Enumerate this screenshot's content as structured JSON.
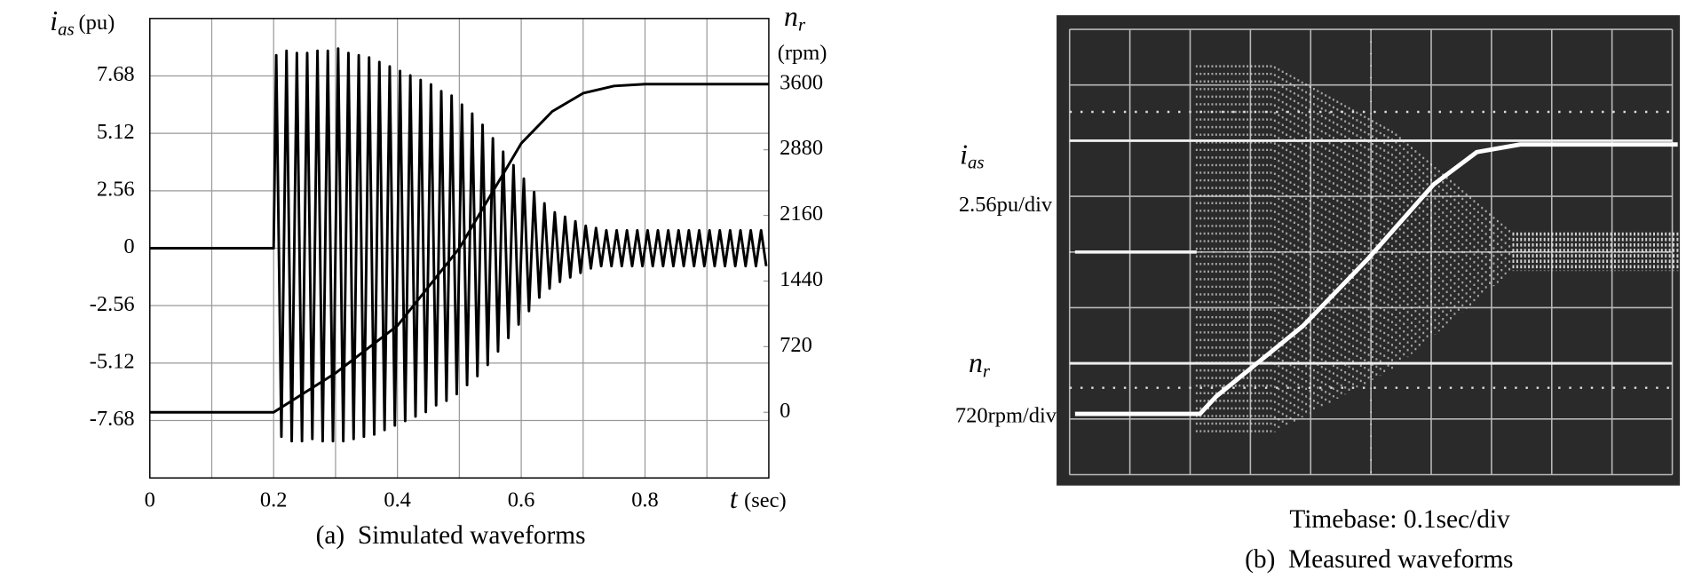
{
  "chart_data": [
    {
      "type": "line",
      "caption": "(a)  Simulated waveforms",
      "ylabel": {
        "symbol": "i",
        "subscript": "as",
        "unit": "(pu)"
      },
      "y2label": {
        "symbol": "n",
        "subscript": "r",
        "unit": "(rpm)"
      },
      "xlabel": {
        "symbol": "t",
        "unit": "(sec)"
      },
      "xlim": [
        0,
        1
      ],
      "xticks": [
        0,
        0.2,
        0.4,
        0.6,
        0.8
      ],
      "ylim": [
        -10.24,
        10.24
      ],
      "yticks": [
        -7.68,
        -5.12,
        -2.56,
        0,
        2.56,
        5.12,
        7.68
      ],
      "y2lim": [
        -720,
        4320
      ],
      "y2ticks": [
        0,
        720,
        1440,
        2160,
        2880,
        3600
      ],
      "grid": true,
      "series": [
        {
          "color": "#000000",
          "x": [
            0,
            0.2,
            0.2042,
            0.2125,
            0.2208,
            0.2292,
            0.2375,
            0.2458,
            0.2542,
            0.2625,
            0.2708,
            0.2792,
            0.2875,
            0.2958,
            0.3042,
            0.3125,
            0.3208,
            0.3292,
            0.3375,
            0.3458,
            0.3542,
            0.3625,
            0.3708,
            0.3792,
            0.3875,
            0.3958,
            0.4042,
            0.4125,
            0.4208,
            0.4292,
            0.4375,
            0.4458,
            0.4542,
            0.4625,
            0.4708,
            0.4792,
            0.4875,
            0.4958,
            0.5042,
            0.5125,
            0.5208,
            0.5292,
            0.5375,
            0.5458,
            0.5542,
            0.5625,
            0.5708,
            0.5792,
            0.5875,
            0.5958,
            0.6042,
            0.6125,
            0.6208,
            0.6292,
            0.6375,
            0.6458,
            0.6542,
            0.6625,
            0.6708,
            0.6792,
            0.6875,
            0.6958,
            0.7042,
            0.7125,
            0.7208,
            0.7292,
            0.7375,
            0.7458,
            0.7542,
            0.7625,
            0.7708,
            0.7792,
            0.7875,
            0.7958,
            0.8042,
            0.8125,
            0.8208,
            0.8292,
            0.8375,
            0.8458,
            0.8542,
            0.8625,
            0.8708,
            0.8792,
            0.8875,
            0.8958,
            0.9042,
            0.9125,
            0.9208,
            0.9292,
            0.9375,
            0.9458,
            0.9542,
            0.9625,
            0.9708,
            0.9792,
            0.9875,
            0.9958
          ],
          "values": [
            0,
            0,
            8.6,
            -8.4,
            8.8,
            -8.6,
            8.7,
            -8.6,
            8.7,
            -8.5,
            8.8,
            -8.6,
            8.8,
            -8.6,
            8.9,
            -8.6,
            8.7,
            -8.5,
            8.6,
            -8.4,
            8.5,
            -8.3,
            8.3,
            -8.1,
            8.1,
            -7.9,
            7.9,
            -7.7,
            7.7,
            -7.5,
            7.5,
            -7.3,
            7.3,
            -7.0,
            7.0,
            -6.8,
            6.8,
            -6.5,
            6.4,
            -6.1,
            6.0,
            -5.7,
            5.5,
            -5.2,
            4.9,
            -4.6,
            4.3,
            -4.0,
            3.7,
            -3.4,
            3.1,
            -2.8,
            2.5,
            -2.2,
            2.0,
            -1.8,
            1.6,
            -1.5,
            1.4,
            -1.3,
            1.2,
            -1.1,
            1.0,
            -0.9,
            0.9,
            -0.8,
            0.8,
            -0.8,
            0.8,
            -0.8,
            0.8,
            -0.8,
            0.8,
            -0.8,
            0.8,
            -0.8,
            0.8,
            -0.8,
            0.8,
            -0.8,
            0.8,
            -0.8,
            0.8,
            -0.8,
            0.8,
            -0.8,
            0.8,
            -0.8,
            0.8,
            -0.8,
            0.8,
            -0.8,
            0.8,
            -0.8,
            0.8,
            -0.8,
            0.8,
            -0.8
          ]
        },
        {
          "color": "#000000",
          "axis": "y2",
          "x": [
            0,
            0.2,
            0.3,
            0.4,
            0.5,
            0.6,
            0.65,
            0.7,
            0.75,
            0.8,
            1.0
          ],
          "values": [
            0,
            0,
            430,
            950,
            1800,
            2950,
            3300,
            3500,
            3580,
            3600,
            3600
          ]
        }
      ]
    },
    {
      "type": "oscilloscope",
      "caption": "(b)  Measured waveforms",
      "timebase": "Timebase: 0.1sec/div",
      "channels": [
        {
          "symbol": "i",
          "subscript": "as",
          "scale": "2.56pu/div"
        },
        {
          "symbol": "n",
          "subscript": "r",
          "scale": "720rpm/div"
        }
      ]
    }
  ]
}
